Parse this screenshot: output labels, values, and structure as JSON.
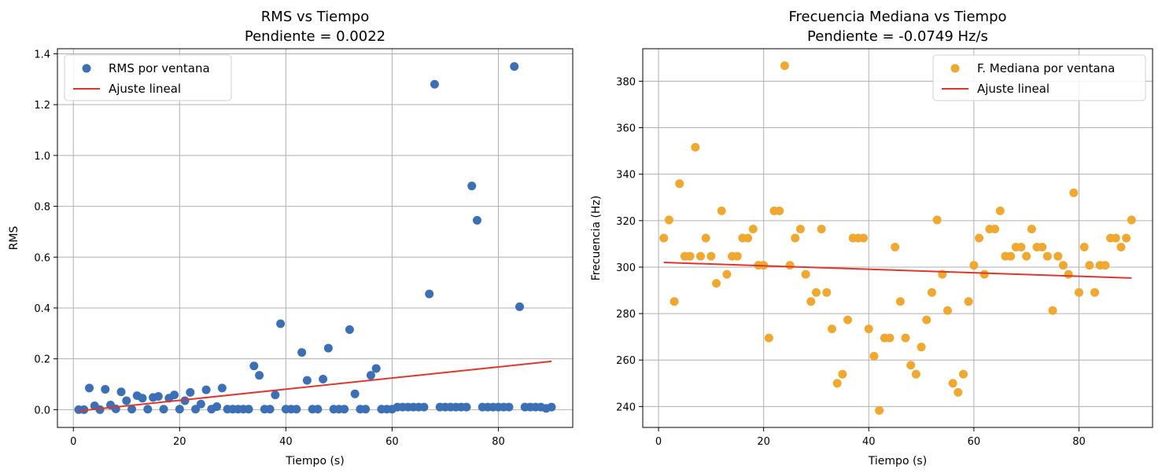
{
  "chart_data": [
    {
      "type": "scatter",
      "title": "RMS vs Tiempo",
      "subtitle": "Pendiente = 0.0022",
      "xlabel": "Tiempo (s)",
      "ylabel": "RMS",
      "xlim": [
        -3,
        94
      ],
      "ylim": [
        -0.07,
        1.42
      ],
      "xticks": [
        0,
        20,
        40,
        60,
        80
      ],
      "yticks": [
        0.0,
        0.2,
        0.4,
        0.6,
        0.8,
        1.0,
        1.2,
        1.4
      ],
      "ytick_labels": [
        "0.0",
        "0.2",
        "0.4",
        "0.6",
        "0.8",
        "1.0",
        "1.2",
        "1.4"
      ],
      "xtick_labels": [
        "0",
        "20",
        "40",
        "60",
        "80"
      ],
      "grid": true,
      "legend": "top-left",
      "series": [
        {
          "name": "RMS por ventana",
          "kind": "points",
          "color": "#3b6fb6",
          "x": [
            1,
            2,
            3,
            4,
            5,
            6,
            7,
            8,
            9,
            10,
            11,
            12,
            13,
            14,
            15,
            16,
            17,
            18,
            19,
            20,
            21,
            22,
            23,
            24,
            25,
            26,
            27,
            28,
            29,
            30,
            31,
            32,
            33,
            34,
            35,
            36,
            37,
            38,
            39,
            40,
            41,
            42,
            43,
            44,
            45,
            46,
            47,
            48,
            49,
            50,
            51,
            52,
            53,
            54,
            55,
            56,
            57,
            58,
            59,
            60,
            61,
            62,
            63,
            64,
            65,
            66,
            67,
            68,
            69,
            70,
            71,
            72,
            73,
            74,
            75,
            76,
            77,
            78,
            79,
            80,
            81,
            82,
            83,
            84,
            85,
            86,
            87,
            88,
            89,
            90
          ],
          "y": [
            0.0,
            0.0,
            0.085,
            0.015,
            0.0,
            0.08,
            0.018,
            0.003,
            0.07,
            0.035,
            0.002,
            0.055,
            0.045,
            0.002,
            0.048,
            0.052,
            0.002,
            0.045,
            0.058,
            0.002,
            0.035,
            0.068,
            0.002,
            0.022,
            0.078,
            0.002,
            0.012,
            0.085,
            0.002,
            0.002,
            0.002,
            0.002,
            0.002,
            0.172,
            0.135,
            0.002,
            0.002,
            0.058,
            0.338,
            0.002,
            0.002,
            0.002,
            0.225,
            0.115,
            0.002,
            0.002,
            0.12,
            0.242,
            0.002,
            0.002,
            0.002,
            0.315,
            0.062,
            0.002,
            0.002,
            0.135,
            0.162,
            0.002,
            0.002,
            0.002,
            0.01,
            0.01,
            0.01,
            0.01,
            0.01,
            0.01,
            0.455,
            1.28,
            0.01,
            0.01,
            0.01,
            0.01,
            0.01,
            0.01,
            0.88,
            0.745,
            0.01,
            0.01,
            0.01,
            0.01,
            0.01,
            0.01,
            1.35,
            0.405,
            0.01,
            0.01,
            0.01,
            0.01,
            0.005,
            0.01
          ]
        },
        {
          "name": "Ajuste lineal",
          "kind": "line",
          "color": "#e0362c",
          "x": [
            1,
            90
          ],
          "y": [
            -0.005,
            0.19
          ]
        }
      ]
    },
    {
      "type": "scatter",
      "title": "Frecuencia Mediana vs Tiempo",
      "subtitle": "Pendiente = -0.0749 Hz/s",
      "xlabel": "Tiempo (s)",
      "ylabel": "Frecuencia (Hz)",
      "xlim": [
        -3,
        94
      ],
      "ylim": [
        231,
        394
      ],
      "xticks": [
        0,
        20,
        40,
        60,
        80
      ],
      "yticks": [
        240,
        260,
        280,
        300,
        320,
        340,
        360,
        380
      ],
      "ytick_labels": [
        "240",
        "260",
        "280",
        "300",
        "320",
        "340",
        "360",
        "380"
      ],
      "xtick_labels": [
        "0",
        "20",
        "40",
        "60",
        "80"
      ],
      "grid": true,
      "legend": "top-right",
      "series": [
        {
          "name": "F. Mediana por ventana",
          "kind": "points",
          "color": "#f0a830",
          "x": [
            1,
            2,
            3,
            4,
            5,
            6,
            7,
            8,
            9,
            10,
            11,
            12,
            13,
            14,
            15,
            16,
            17,
            18,
            19,
            20,
            21,
            22,
            23,
            24,
            25,
            26,
            27,
            28,
            29,
            30,
            31,
            32,
            33,
            34,
            35,
            36,
            37,
            38,
            39,
            40,
            41,
            42,
            43,
            44,
            45,
            46,
            47,
            48,
            49,
            50,
            51,
            52,
            53,
            54,
            55,
            56,
            57,
            58,
            59,
            60,
            61,
            62,
            63,
            64,
            65,
            66,
            67,
            68,
            69,
            70,
            71,
            72,
            73,
            74,
            75,
            76,
            77,
            78,
            79,
            80,
            81,
            82,
            83,
            84,
            85,
            86,
            87,
            88,
            89,
            90
          ],
          "y": [
            312.5,
            320.3,
            285.2,
            335.9,
            304.7,
            304.7,
            351.6,
            304.7,
            312.5,
            304.7,
            293.0,
            324.2,
            296.9,
            304.7,
            304.7,
            312.5,
            312.5,
            316.4,
            300.8,
            300.8,
            269.5,
            324.2,
            324.2,
            386.7,
            300.8,
            312.5,
            316.4,
            296.9,
            285.2,
            289.1,
            316.4,
            289.1,
            273.4,
            250.0,
            253.9,
            277.3,
            312.5,
            312.5,
            312.5,
            273.4,
            261.7,
            238.3,
            269.5,
            269.5,
            308.6,
            285.2,
            269.5,
            257.8,
            253.9,
            265.6,
            277.3,
            289.1,
            320.3,
            296.9,
            281.3,
            250.0,
            246.1,
            253.9,
            285.2,
            300.8,
            312.5,
            296.9,
            316.4,
            316.4,
            324.2,
            304.7,
            304.7,
            308.6,
            308.6,
            304.7,
            316.4,
            308.6,
            308.6,
            304.7,
            281.3,
            304.7,
            300.8,
            296.9,
            332.0,
            289.1,
            308.6,
            300.8,
            289.1,
            300.8,
            300.8,
            312.5,
            312.5,
            308.6,
            312.5,
            320.3
          ]
        },
        {
          "name": "Ajuste lineal",
          "kind": "line",
          "color": "#e0362c",
          "x": [
            1,
            90
          ],
          "y": [
            302.0,
            295.3
          ]
        }
      ]
    }
  ]
}
